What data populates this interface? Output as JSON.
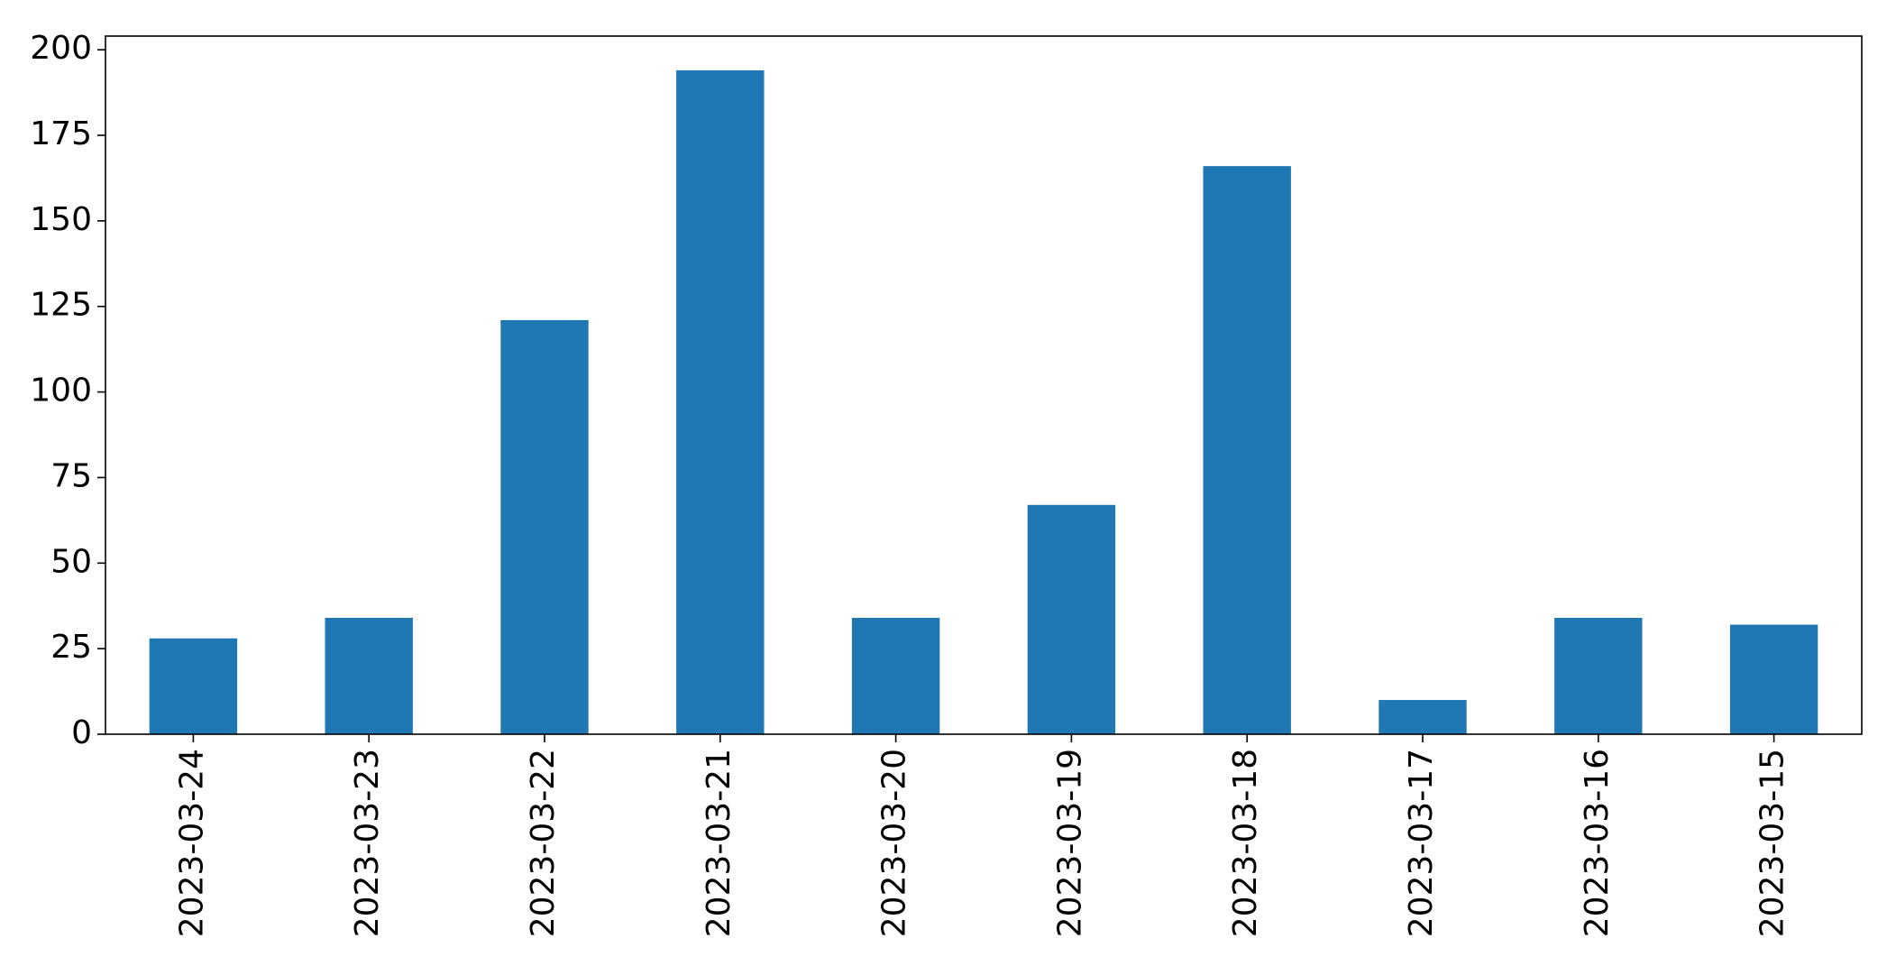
{
  "chart_data": {
    "type": "bar",
    "categories": [
      "2023-03-24",
      "2023-03-23",
      "2023-03-22",
      "2023-03-21",
      "2023-03-20",
      "2023-03-19",
      "2023-03-18",
      "2023-03-17",
      "2023-03-16",
      "2023-03-15"
    ],
    "values": [
      28,
      34,
      121,
      194,
      34,
      67,
      166,
      10,
      34,
      32
    ],
    "title": "",
    "xlabel": "",
    "ylabel": "",
    "ylim": [
      0,
      204
    ],
    "yticks": [
      0,
      25,
      50,
      75,
      100,
      125,
      150,
      175,
      200
    ],
    "grid": false,
    "legend": "none",
    "bar_color": "#1f77b4",
    "x_tick_rotation": "vertical"
  }
}
